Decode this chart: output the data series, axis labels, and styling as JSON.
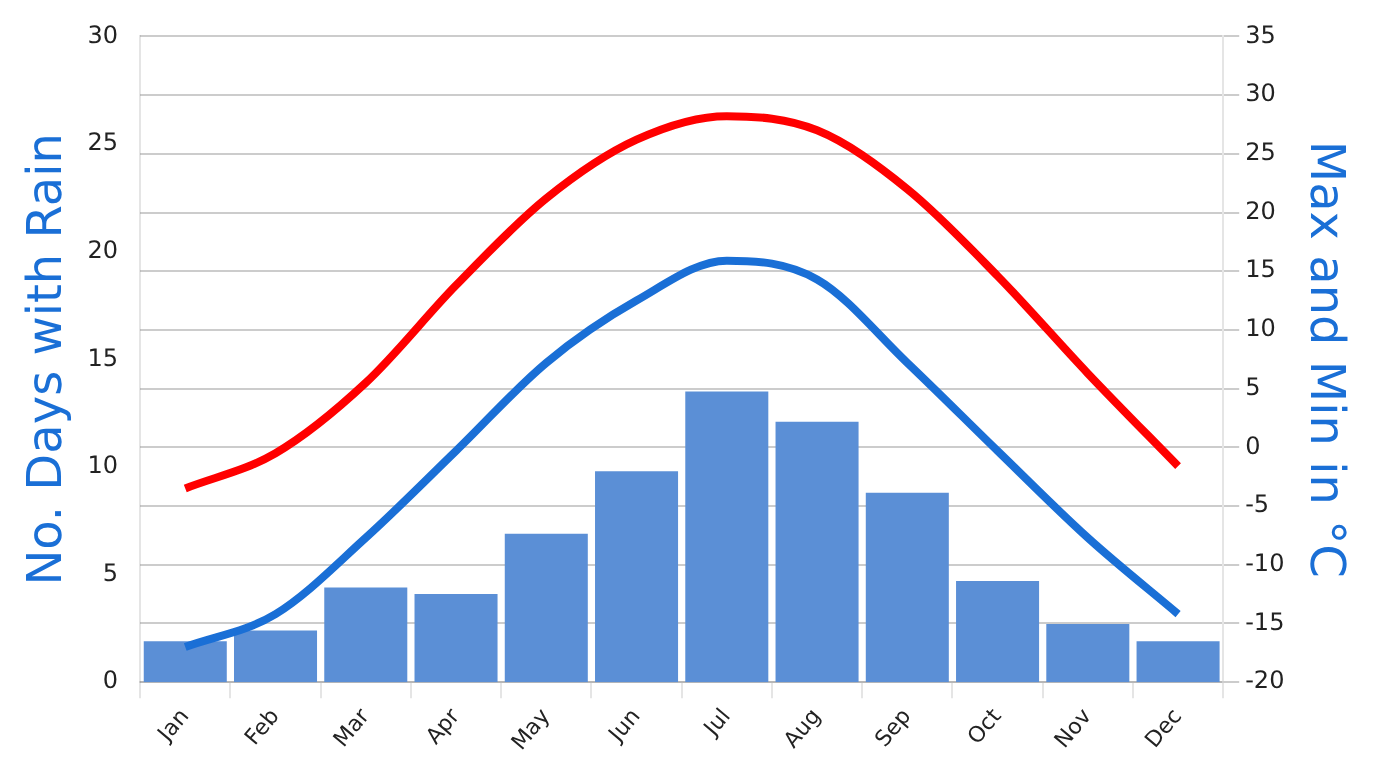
{
  "chart_data": {
    "type": "bar",
    "categories": [
      "Jan",
      "Feb",
      "Mar",
      "Apr",
      "May",
      "Jun",
      "Jul",
      "Aug",
      "Sep",
      "Oct",
      "Nov",
      "Dec"
    ],
    "ylabel": "No. Days with Rain",
    "y2label": "Max and Min in °C",
    "series": [
      {
        "color": "#5b8fd6",
        "values": [
          1.9,
          2.4,
          4.4,
          4.1,
          6.9,
          9.8,
          13.5,
          12.1,
          8.8,
          4.7,
          2.7,
          1.9
        ]
      },
      {
        "type": "line",
        "axis": "y2",
        "color": "#ff0000",
        "values": [
          -3.5,
          -0.5,
          5.5,
          13.8,
          21.2,
          26.2,
          28.2,
          27,
          22,
          14.6,
          6.3,
          -1.6
        ]
      },
      {
        "type": "line",
        "axis": "y2",
        "color": "#1a6fd6",
        "values": [
          -17,
          -14.2,
          -7.7,
          -0.3,
          7.2,
          12.5,
          15.9,
          14.3,
          7.2,
          -0.3,
          -7.7,
          -14.2
        ]
      }
    ],
    "ylim": [
      0,
      30
    ],
    "yticks": [
      0,
      5,
      10,
      15,
      20,
      25,
      30
    ],
    "y2lim": [
      -20,
      35
    ],
    "y2ticks": [
      -20,
      -15,
      -10,
      -5,
      0,
      5,
      10,
      15,
      20,
      25,
      30,
      35
    ],
    "grid": true,
    "legend": false
  }
}
